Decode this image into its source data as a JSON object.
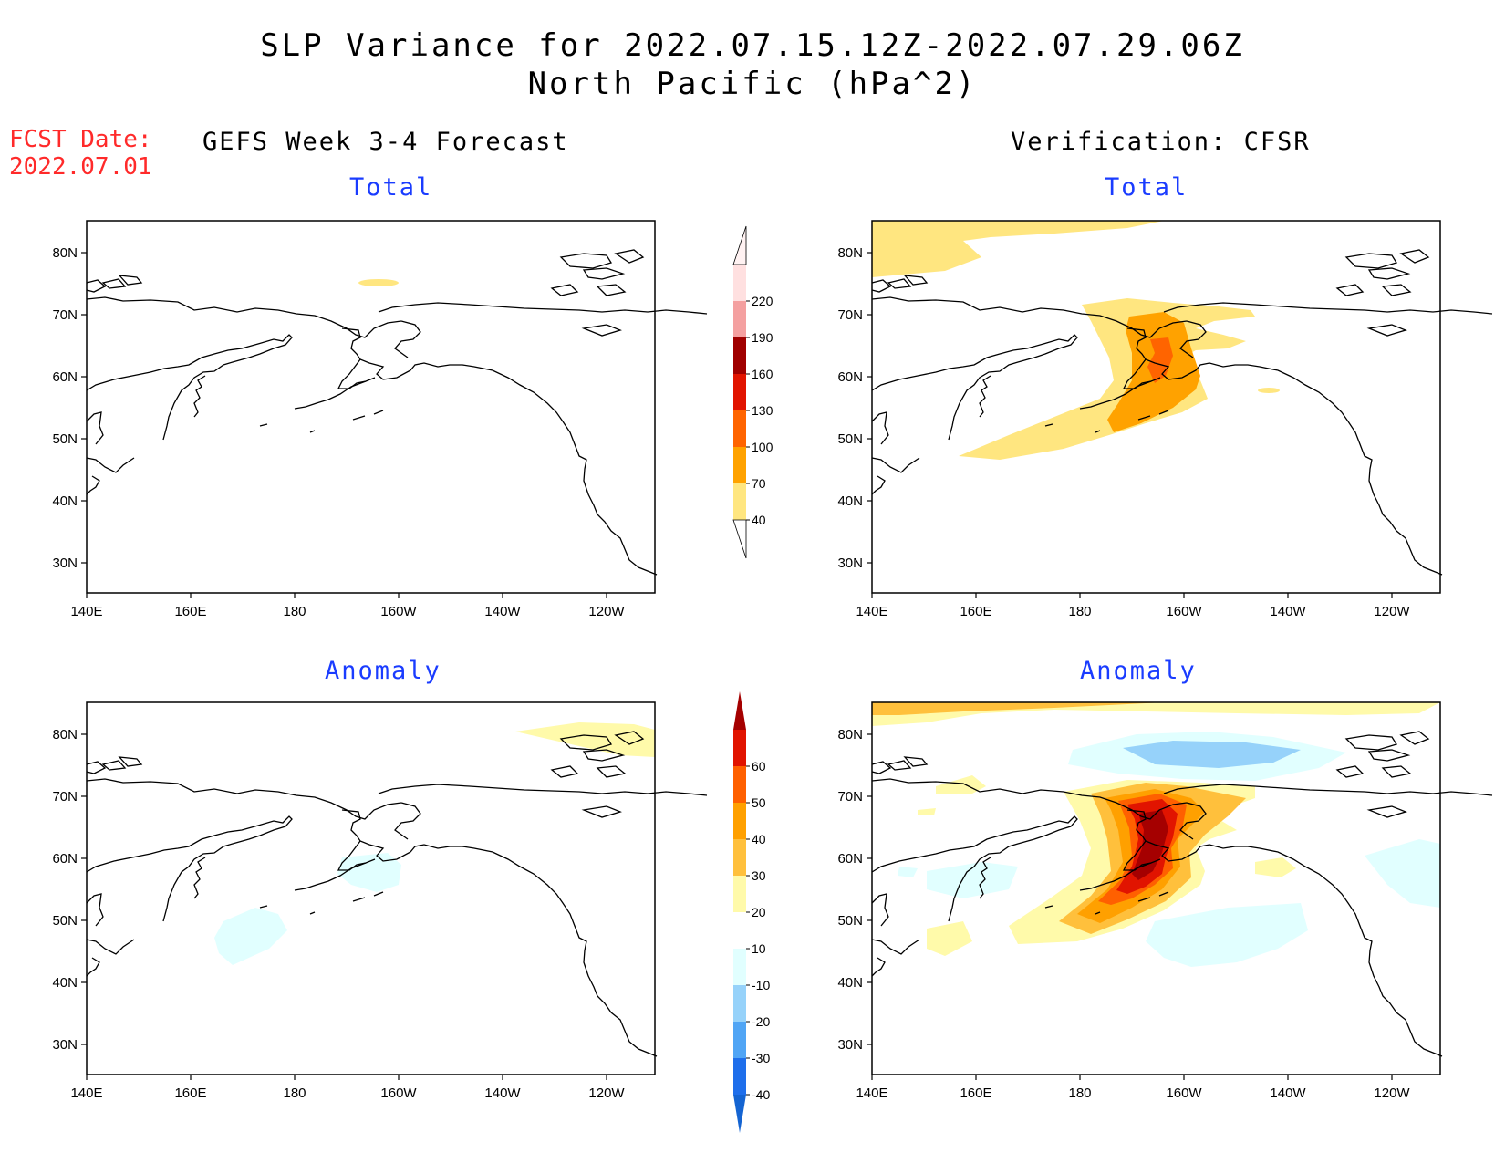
{
  "title_line1": "SLP Variance for 2022.07.15.12Z-2022.07.29.06Z",
  "title_line2": "North Pacific (hPa^2)",
  "fcst_label": "FCST Date:",
  "fcst_date": "2022.07.01",
  "left_column_title": "GEFS Week 3-4 Forecast",
  "right_column_title": "Verification: CFSR",
  "panel_total_title": "Total",
  "panel_anomaly_title": "Anomaly",
  "lon_ticks": [
    "140E",
    "160E",
    "180",
    "160W",
    "140W",
    "120W"
  ],
  "lat_ticks": [
    "80N",
    "70N",
    "60N",
    "50N",
    "40N",
    "30N"
  ],
  "total_colorbar": {
    "labels": [
      "40",
      "70",
      "100",
      "130",
      "160",
      "190",
      "220"
    ],
    "colors": [
      "#ffe680",
      "#ffa200",
      "#ff6400",
      "#e11400",
      "#a00000",
      "#f4a0a0",
      "#ffe0e0"
    ]
  },
  "anomaly_colorbar": {
    "labels": [
      "-40",
      "-30",
      "-20",
      "-10",
      "10",
      "20",
      "30",
      "40",
      "50",
      "60"
    ],
    "colors": [
      "#1464d2",
      "#1e6eeb",
      "#50a5f5",
      "#96d2fa",
      "#e1ffff",
      "#ffffff",
      "#fffaaa",
      "#ffc03c",
      "#ffa000",
      "#ff6000",
      "#e11400",
      "#a50000"
    ]
  },
  "colors": {
    "title_blue": "#1a3cff",
    "fcst_red": "#ff2a2a"
  }
}
